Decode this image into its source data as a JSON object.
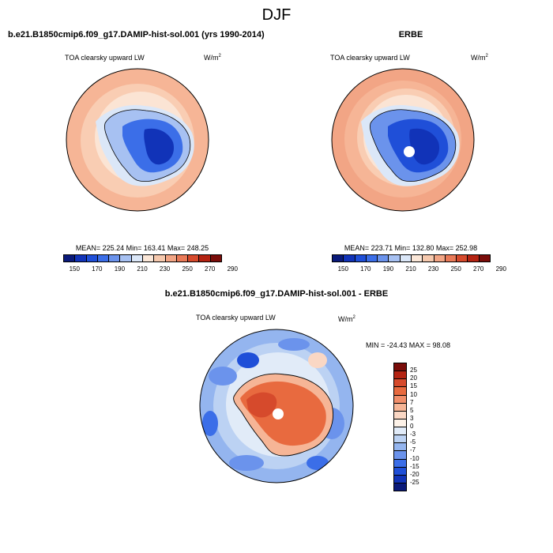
{
  "figure_title": "DJF",
  "chart_data": [
    {
      "type": "heatmap",
      "projection": "south-polar-stereographic",
      "title": "b.e21.B1850cmip6.f09_g17.DAMIP-hist-sol.001 (yrs 1990-2014)",
      "variable": "TOA clearsky upward LW",
      "units_base": "W/m",
      "units_exp": "2",
      "stats": {
        "mean": 225.24,
        "min": 163.41,
        "max": 248.25
      },
      "stats_text": "MEAN= 225.24  Min= 163.41  Max= 248.25",
      "colorbar": {
        "colors": [
          "#0a1a7a",
          "#1133b8",
          "#1f4fd8",
          "#3b6ee8",
          "#6b93ec",
          "#a7c1f2",
          "#dbe7f8",
          "#fbe7d8",
          "#f6c9ae",
          "#f2a585",
          "#e97a58",
          "#d64a2c",
          "#b42312",
          "#7a0d0a"
        ],
        "labels": [
          "150",
          "170",
          "190",
          "210",
          "230",
          "250",
          "270",
          "290"
        ],
        "label_positions": [
          1,
          3,
          5,
          7,
          9,
          11,
          13,
          15
        ]
      }
    },
    {
      "type": "heatmap",
      "projection": "south-polar-stereographic",
      "title": "ERBE",
      "variable": "TOA clearsky upward LW",
      "units_base": "W/m",
      "units_exp": "2",
      "stats": {
        "mean": 223.71,
        "min": 132.8,
        "max": 252.98
      },
      "stats_text": "MEAN= 223.71  Min= 132.80  Max= 252.98",
      "colorbar": {
        "colors": [
          "#0a1a7a",
          "#1133b8",
          "#1f4fd8",
          "#3b6ee8",
          "#6b93ec",
          "#a7c1f2",
          "#dbe7f8",
          "#fbe7d8",
          "#f6c9ae",
          "#f2a585",
          "#e97a58",
          "#d64a2c",
          "#b42312",
          "#7a0d0a"
        ],
        "labels": [
          "150",
          "170",
          "190",
          "210",
          "230",
          "250",
          "270",
          "290"
        ],
        "label_positions": [
          1,
          3,
          5,
          7,
          9,
          11,
          13,
          15
        ]
      }
    },
    {
      "type": "heatmap",
      "projection": "south-polar-stereographic",
      "title": "b.e21.B1850cmip6.f09_g17.DAMIP-hist-sol.001 - ERBE",
      "variable": "TOA clearsky upward LW",
      "units_base": "W/m",
      "units_exp": "2",
      "stats": {
        "min": -24.43,
        "max": 98.08
      },
      "stats_text": "MIN = -24.43  MAX =  98.08",
      "colorbar": {
        "colors": [
          "#7a0d0a",
          "#b42312",
          "#d64a2c",
          "#e86a3f",
          "#f18e6a",
          "#f6b596",
          "#fad7c4",
          "#fdf2e8",
          "#e1ebf8",
          "#bcd2f3",
          "#94b5ef",
          "#6b93ec",
          "#3b6ee8",
          "#1f4fd8",
          "#1133b8",
          "#0a1a7a"
        ],
        "labels": [
          "25",
          "20",
          "15",
          "10",
          "7",
          "5",
          "3",
          "0",
          "-3",
          "-5",
          "-7",
          "-10",
          "-15",
          "-20",
          "-25"
        ]
      }
    }
  ]
}
